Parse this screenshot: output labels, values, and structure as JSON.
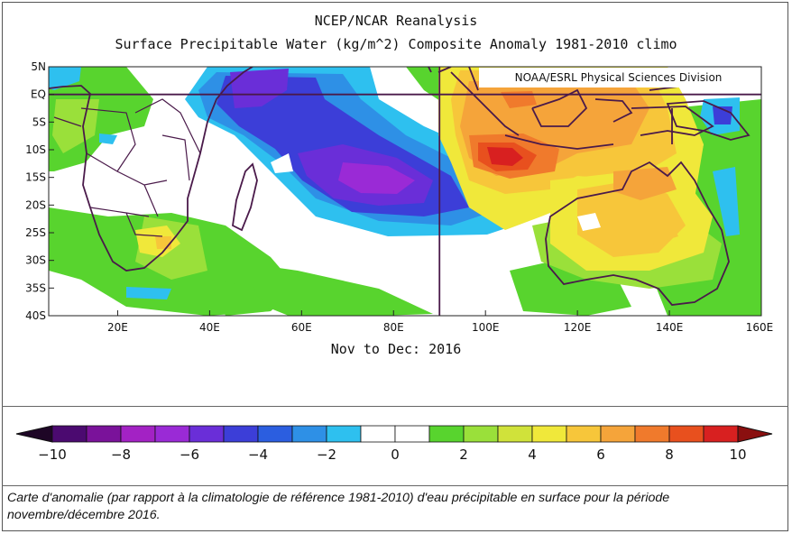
{
  "title_line1": "NCEP/NCAR Reanalysis",
  "title_line2": "Surface Precipitable Water (kg/m^2) Composite Anomaly 1981-2010 climo",
  "credit": "NOAA/ESRL Physical Sciences Division",
  "period": "Nov to Dec: 2016",
  "caption": "Carte d'anomalie (par rapport à la climatologie de référence 1981-2010) d'eau précipitable en surface pour la période novembre/décembre 2016.",
  "map": {
    "lon_range": [
      5,
      160
    ],
    "lat_range": [
      -40,
      5
    ],
    "lat_labels": [
      {
        "lat": 5,
        "label": "5N"
      },
      {
        "lat": 0,
        "label": "EQ"
      },
      {
        "lat": -5,
        "label": "5S"
      },
      {
        "lat": -10,
        "label": "10S"
      },
      {
        "lat": -15,
        "label": "15S"
      },
      {
        "lat": -20,
        "label": "20S"
      },
      {
        "lat": -25,
        "label": "25S"
      },
      {
        "lat": -30,
        "label": "30S"
      },
      {
        "lat": -35,
        "label": "35S"
      },
      {
        "lat": -40,
        "label": "40S"
      }
    ],
    "lon_labels": [
      {
        "lon": 20,
        "label": "20E"
      },
      {
        "lon": 40,
        "label": "40E"
      },
      {
        "lon": 60,
        "label": "60E"
      },
      {
        "lon": 80,
        "label": "80E"
      },
      {
        "lon": 100,
        "label": "100E"
      },
      {
        "lon": 120,
        "label": "120E"
      },
      {
        "lon": 140,
        "label": "140E"
      },
      {
        "lon": 160,
        "label": "160E"
      }
    ],
    "reference_lines": {
      "equator_lat": 0,
      "meridian_lon": 90
    },
    "anomaly_regions": [
      {
        "name": "negative-anomaly-indian-ocean",
        "min": -7
      },
      {
        "name": "positive-anomaly-indonesia",
        "max": 9
      },
      {
        "name": "negative-anomaly-west-africa",
        "min": -3
      },
      {
        "name": "positive-anomaly-northern-australia",
        "max": 6
      }
    ]
  },
  "colorbar": {
    "unit": "kg/m^2",
    "colors": [
      "#4b0a70",
      "#7a129a",
      "#a322c4",
      "#9a2ad6",
      "#6a2ed8",
      "#3c3ed8",
      "#2b5ee0",
      "#2e90e6",
      "#2ec0ef",
      "#ffffff",
      "#ffffff",
      "#58d42e",
      "#9ae03a",
      "#d0e23a",
      "#f0e83a",
      "#f7c63a",
      "#f5a43a",
      "#f07a2c",
      "#e8501e",
      "#d82020"
    ],
    "tick_labels": [
      "-10",
      "-8",
      "-6",
      "-4",
      "-2",
      "0",
      "2",
      "4",
      "6",
      "8",
      "10"
    ]
  }
}
